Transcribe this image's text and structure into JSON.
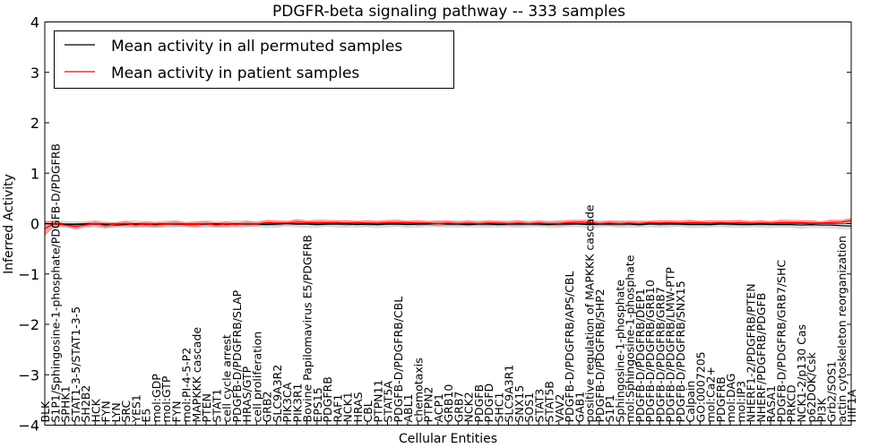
{
  "chart_data": {
    "type": "line",
    "title": "PDGFR-beta signaling pathway -- 333 samples",
    "xlabel": "Cellular Entities",
    "ylabel": "Inferred Activity",
    "ylim": [
      -4,
      4
    ],
    "yticks": [
      -4,
      -3,
      -2,
      -1,
      0,
      1,
      2,
      3,
      4
    ],
    "grid": false,
    "legend": {
      "position": "top-left",
      "entries": [
        {
          "label": "Mean activity in all permuted samples",
          "color": "#000000"
        },
        {
          "label": "Mean activity in patient samples",
          "color": "#ff0000"
        }
      ]
    },
    "colors": {
      "permuted": "#000000",
      "patient": "#ff0000",
      "permuted_band": "#d8d8d8",
      "patient_band": "#f08080"
    },
    "categories": [
      "BLK",
      "S1P1/Sphingosine-1-phosphate/PDGFB-D/PDGFRB",
      "SPHK1",
      "STAT1-3-5/STAT1-3-5",
      "SH2B2",
      "HCK",
      "FYN",
      "LYN",
      "SRC",
      "YES1",
      "E5",
      "mol:GDP",
      "mol:GTP",
      "FYN",
      "mol:PI-4-5-P2",
      "MAPKKK cascade",
      "PTEN",
      "STAT1",
      "cell cycle arrest",
      "PDGFB-D/PDGFRB/SLAP",
      "HRAS/GTP",
      "cell proliferation",
      "GRB2",
      "SLC9A3R2",
      "PIK3CA",
      "PIK3R1",
      "Bovine Papilomavirus E5/PDGFRB",
      "EPS15",
      "PDGFRB",
      "RAF1",
      "NCK1",
      "HRAS",
      "CBL",
      "PTPN11",
      "STAT5A",
      "PDGFB-D/PDGFRB/CBL",
      "ABL1",
      "chemotaxis",
      "PTPN2",
      "ACP1",
      "GRB10",
      "GRB7",
      "NCK2",
      "PDGFB",
      "PDGFD",
      "SHC1",
      "SLC9A3R1",
      "SNX15",
      "SOS1",
      "STAT3",
      "STAT5B",
      "VAV2",
      "PDGFB-D/PDGFRB/APS/CBL",
      "GAB1",
      "positive regulation of MAPKKK cascade",
      "PDGFB-D/PDGFRB/SHP2",
      "S1P1",
      "Sphingosine-1-phosphate",
      "mol:Sphingosine-1-phosphate",
      "PDGFB-D/PDGFRB/DEP1",
      "PDGFB-D/PDGFRB/GRB10",
      "PDGFB-D/PDGFRB/GRB7",
      "PDGFB-D/PDGFRB/LMW-PTP",
      "PDGFB-D/PDGFRB/SNX15",
      "Calpain",
      "GO:0007205",
      "mol:Ca2+",
      "PDGFRB",
      "mol:DAG",
      "mol:IP3",
      "NHERF1-2/PDGFRB/PTEN",
      "NHERF/PDGFRB/PDGFB",
      "RASA1",
      "PDGFB-D/PDGFRB/GRB7/SHC",
      "PRKCD",
      "NCK1-2/p130 Cas",
      "p62DOK/Csk",
      "PI3K",
      "Grb2/SOS1",
      "actin cytoskeleton reorganization",
      "HIF1A"
    ],
    "series": [
      {
        "name": "Mean activity in all permuted samples",
        "values": [
          0,
          -0.01,
          -0.02,
          -0.02,
          -0.01,
          -0.01,
          -0.02,
          -0.03,
          -0.02,
          -0.01,
          -0.02,
          -0.02,
          -0.01,
          -0.01,
          -0.02,
          -0.02,
          -0.01,
          -0.01,
          -0.02,
          -0.01,
          -0.01,
          -0.01,
          -0.02,
          -0.01,
          0,
          -0.01,
          -0.01,
          -0.02,
          -0.01,
          -0.01,
          -0.01,
          -0.02,
          -0.01,
          -0.02,
          -0.01,
          -0.01,
          -0.02,
          -0.01,
          -0.01,
          0,
          -0.01,
          -0.01,
          -0.02,
          -0.01,
          -0.01,
          -0.02,
          -0.01,
          -0.01,
          -0.01,
          -0.01,
          -0.02,
          -0.01,
          -0.01,
          -0.01,
          -0.02,
          -0.01,
          -0.01,
          -0.01,
          -0.01,
          -0.02,
          -0.01,
          -0.01,
          -0.01,
          -0.01,
          -0.02,
          -0.02,
          -0.02,
          -0.01,
          -0.01,
          -0.02,
          -0.02,
          -0.01,
          -0.02,
          -0.02,
          -0.02,
          -0.03,
          -0.02,
          -0.03,
          -0.03,
          -0.04,
          -0.05
        ]
      },
      {
        "name": "Mean activity in patient samples",
        "values": [
          -0.1,
          0.0,
          -0.03,
          -0.06,
          -0.03,
          0.0,
          -0.04,
          -0.02,
          0.0,
          -0.03,
          -0.01,
          -0.03,
          -0.01,
          0.0,
          -0.02,
          -0.02,
          0.0,
          -0.03,
          -0.01,
          -0.02,
          0.0,
          -0.01,
          0.02,
          0.01,
          0.01,
          0.03,
          0.02,
          0.02,
          0.02,
          0.02,
          0.01,
          0.02,
          0.01,
          0.01,
          0.02,
          0.02,
          0.02,
          0.01,
          0.01,
          0.0,
          0.01,
          0.0,
          0.01,
          0.0,
          0.01,
          0.01,
          0.0,
          0.01,
          0.0,
          0.01,
          0.0,
          0.0,
          0.02,
          0.03,
          0.02,
          0.0,
          0.01,
          0.0,
          0.01,
          0.0,
          0.02,
          0.01,
          0.02,
          0.01,
          0.02,
          0.02,
          0.01,
          0.02,
          0.01,
          0.02,
          0.01,
          0.01,
          0.01,
          0.02,
          0.02,
          0.02,
          0.01,
          0.01,
          0.02,
          0.03,
          0.06
        ]
      }
    ]
  }
}
